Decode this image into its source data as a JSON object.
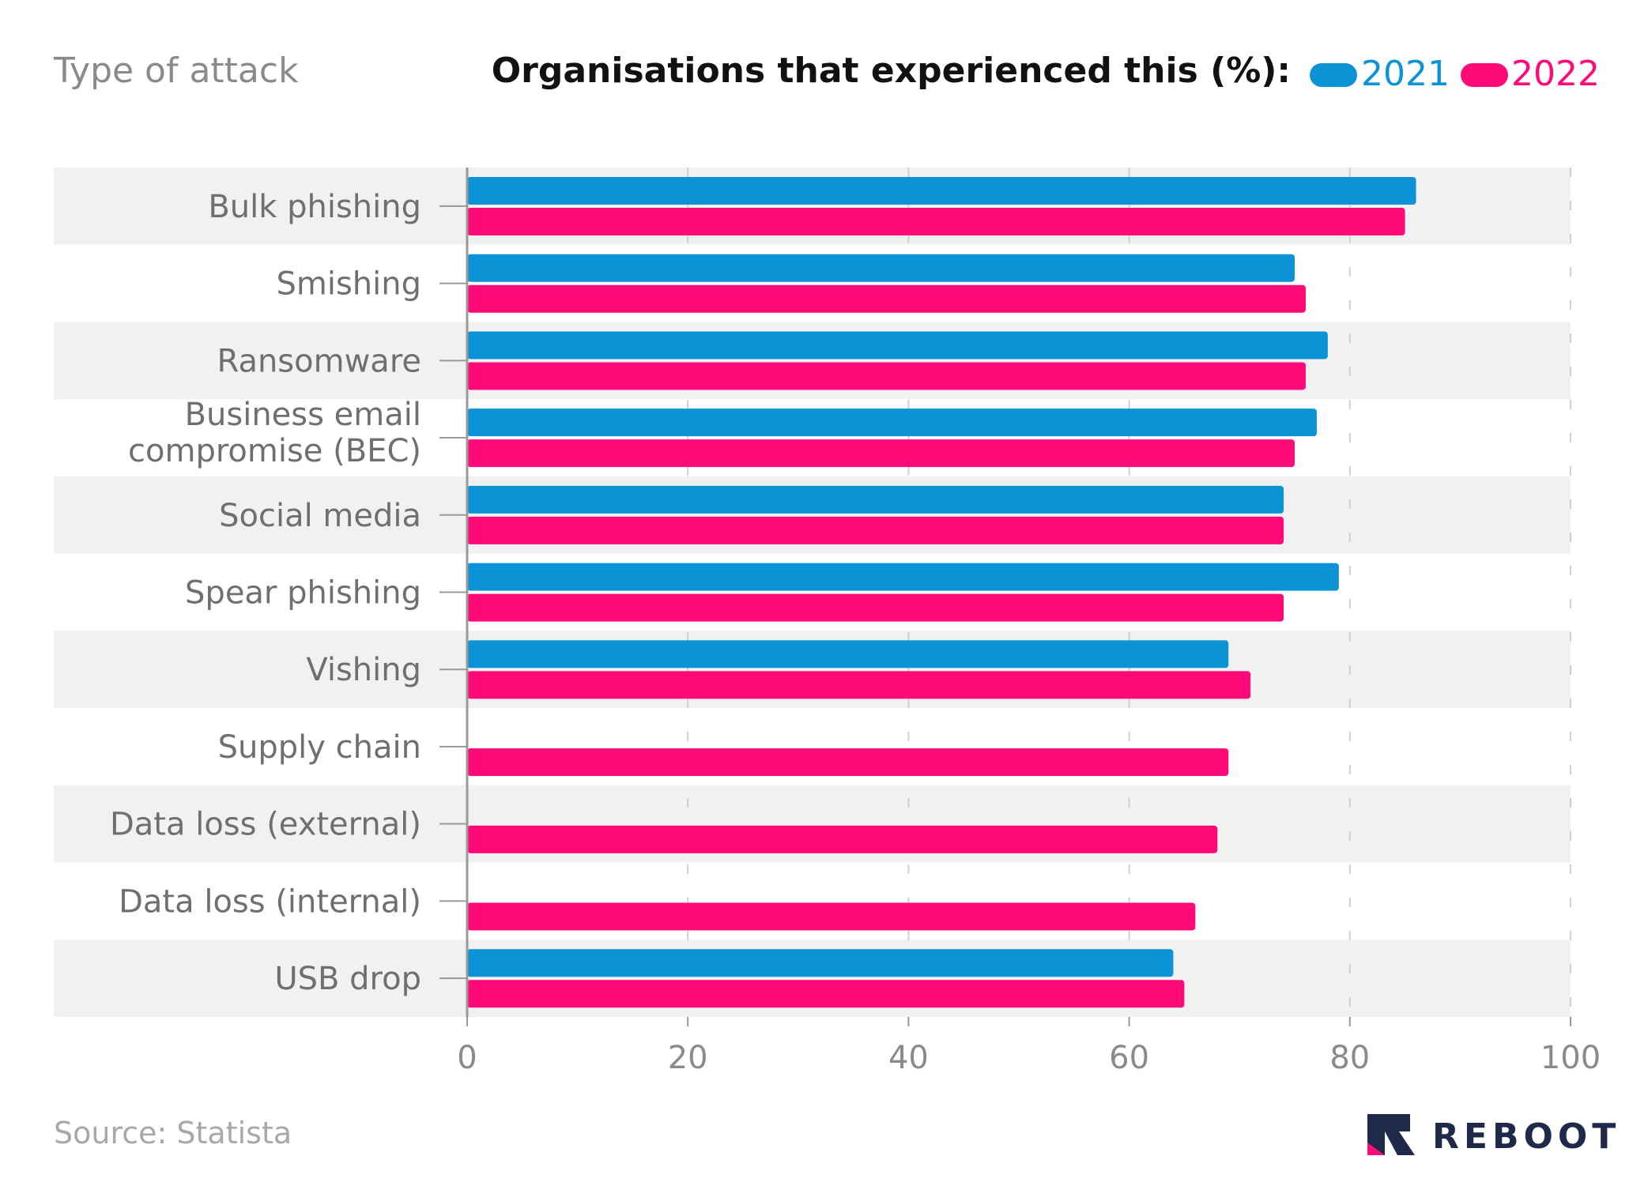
{
  "header": {
    "left_title": "Type of attack",
    "right_title": "Organisations that experienced this (%):"
  },
  "footer": {
    "source": "Source: Statista",
    "brand": "REBOOT"
  },
  "colors": {
    "series_2021": "#0b93d6",
    "series_2022": "#ff0a78",
    "band": "#f1f1f1",
    "axis": "#9a9a9a",
    "grid": "#cfcfcf"
  },
  "icons": {
    "brand_logo": "reboot-logo-icon"
  },
  "chart_data": {
    "type": "bar",
    "orientation": "horizontal",
    "categories": [
      "Bulk phishing",
      "Smishing",
      "Ransomware",
      "Business email compromise (BEC)",
      "Social media",
      "Spear phishing",
      "Vishing",
      "Supply chain",
      "Data loss (external)",
      "Data loss (internal)",
      "USB drop"
    ],
    "category_label_lines": [
      [
        "Bulk phishing"
      ],
      [
        "Smishing"
      ],
      [
        "Ransomware"
      ],
      [
        "Business email",
        "compromise (BEC)"
      ],
      [
        "Social media"
      ],
      [
        "Spear phishing"
      ],
      [
        "Vishing"
      ],
      [
        "Supply chain"
      ],
      [
        "Data loss (external)"
      ],
      [
        "Data loss (internal)"
      ],
      [
        "USB drop"
      ]
    ],
    "series": [
      {
        "name": "2021",
        "values": [
          86,
          75,
          78,
          77,
          74,
          79,
          69,
          null,
          null,
          null,
          64
        ]
      },
      {
        "name": "2022",
        "values": [
          85,
          76,
          76,
          75,
          74,
          74,
          71,
          69,
          68,
          66,
          65
        ]
      }
    ],
    "xlim": [
      0,
      100
    ],
    "xticks": [
      0,
      20,
      40,
      60,
      80,
      100
    ],
    "xlabel": "",
    "ylabel": "",
    "grid": true,
    "legend_position": "top-right"
  }
}
